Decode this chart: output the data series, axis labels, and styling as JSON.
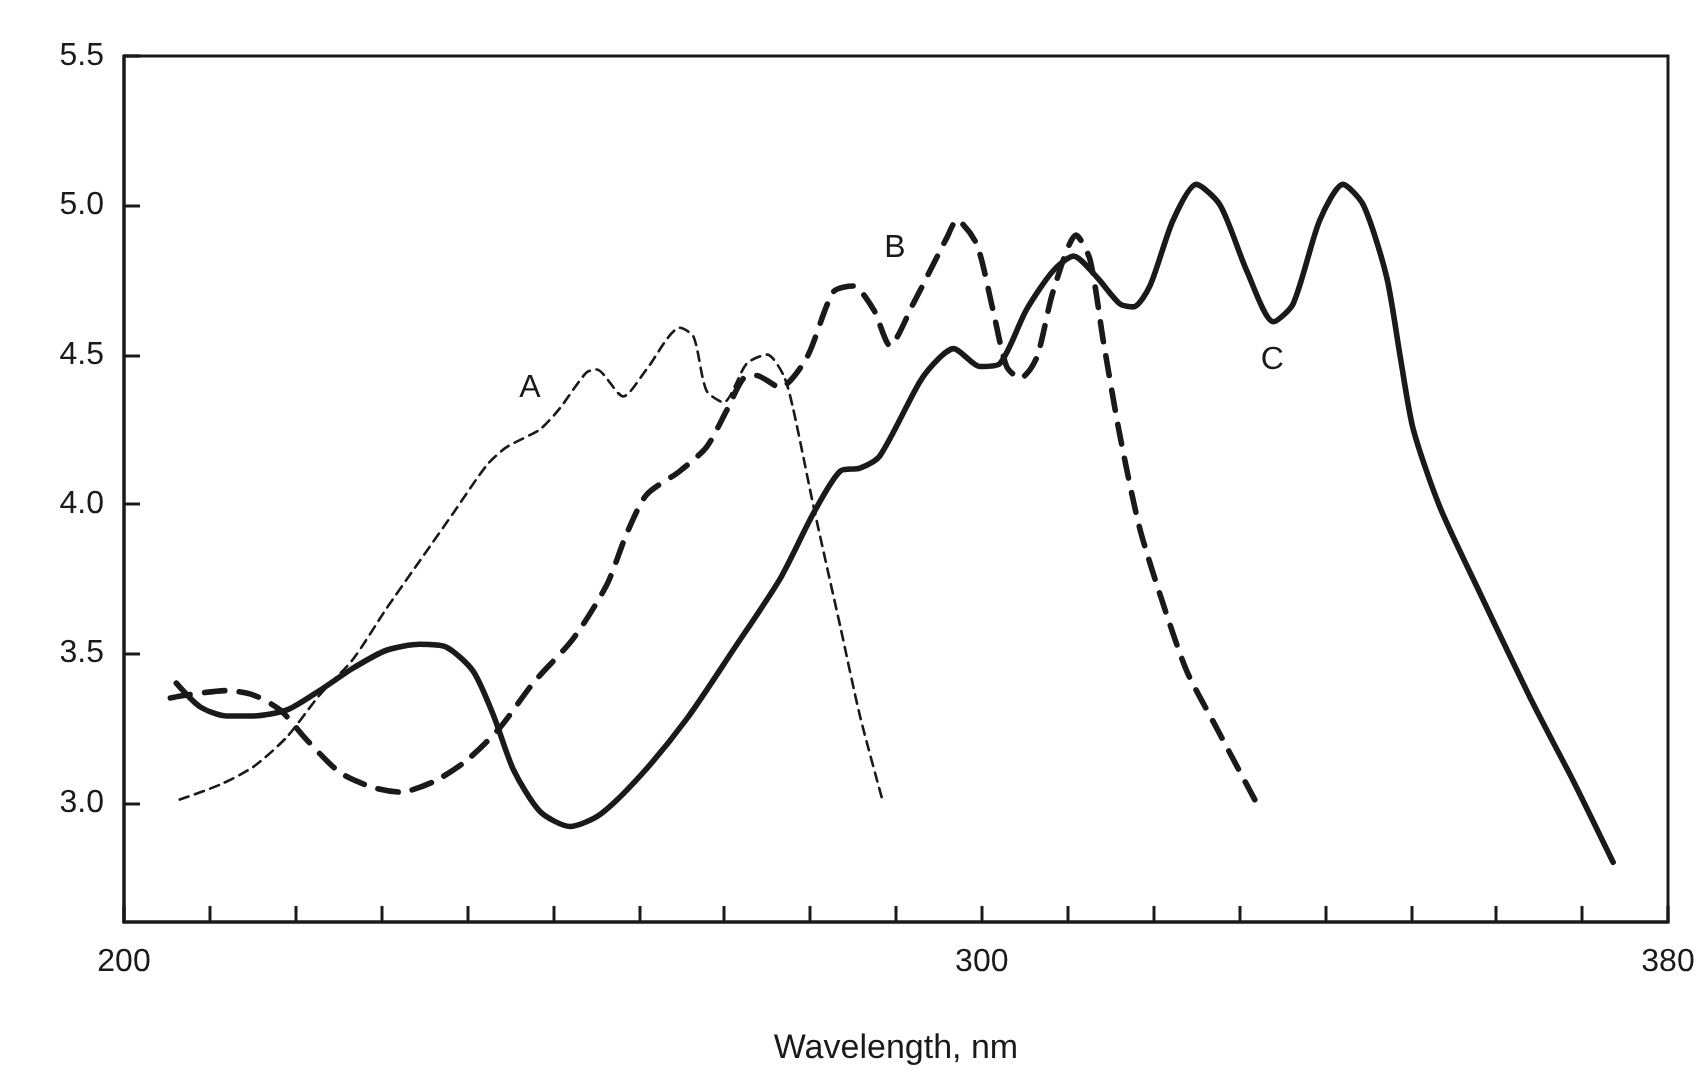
{
  "chart_data": {
    "type": "line",
    "xlabel": "Wavelength, nm",
    "xlim": [
      200,
      380
    ],
    "ylim": [
      2.6,
      5.5
    ],
    "xticks": [
      200,
      {
        "value": 210,
        "label": null
      },
      {
        "value": 220,
        "label": null
      },
      {
        "value": 230,
        "label": null
      },
      {
        "value": 240,
        "label": null
      },
      {
        "value": 250,
        "label": null
      },
      {
        "value": 260,
        "label": null
      },
      {
        "value": 270,
        "label": null
      },
      {
        "value": 280,
        "label": null
      },
      {
        "value": 290,
        "label": null
      },
      300,
      {
        "value": 310,
        "label": null
      },
      {
        "value": 320,
        "label": null
      },
      {
        "value": 330,
        "label": null
      },
      {
        "value": 340,
        "label": null
      },
      {
        "value": 350,
        "label": null
      },
      {
        "value": 360,
        "label": null
      },
      {
        "value": 370,
        "label": null
      },
      380
    ],
    "yticks": [
      {
        "value": 3,
        "label": "3.0"
      },
      3.5,
      {
        "value": 4,
        "label": "4.0"
      },
      4.5,
      {
        "value": 5,
        "label": "5.0"
      },
      5.5
    ],
    "series": [
      {
        "name": "A",
        "color": "#1a1a1a",
        "line_style": "dashed",
        "x": [
          206.5,
          211.2,
          215.1,
          219,
          222.8,
          226.7,
          230.6,
          234.5,
          238.4,
          242.3,
          244.6,
          248.5,
          250.8,
          253.9,
          255.1,
          258.2,
          260.9,
          264.8,
          266.4,
          267.9,
          269.9,
          272.6,
          275,
          276.9,
          278,
          280.4,
          283.5,
          285.8,
          288.5
        ],
        "values": [
          3.01,
          3.06,
          3.12,
          3.22,
          3.36,
          3.48,
          3.65,
          3.81,
          3.97,
          4.13,
          4.19,
          4.25,
          4.32,
          4.44,
          4.45,
          4.36,
          4.45,
          4.59,
          4.56,
          4.38,
          4.34,
          4.47,
          4.5,
          4.43,
          4.32,
          3.99,
          3.59,
          3.29,
          3.0
        ]
      },
      {
        "name": "B",
        "color": "#1a1a1a",
        "line_style": "dashed",
        "x": [
          205.4,
          207.3,
          212,
          215.1,
          218.2,
          221.3,
          225.2,
          229.1,
          232.2,
          236.1,
          239.9,
          243.8,
          247.7,
          252.4,
          256.3,
          258.6,
          260.9,
          264.8,
          267.9,
          270.2,
          272.2,
          273.7,
          276.5,
          279.6,
          282.7,
          285,
          287.4,
          289.3,
          292,
          295.9,
          297.1,
          299.4,
          301.3,
          302.9,
          304.5,
          306.4,
          308.3,
          311,
          312.6,
          314.2,
          316.1,
          318.4,
          321.2,
          323.9,
          327,
          332
        ],
        "values": [
          3.35,
          3.36,
          3.375,
          3.36,
          3.31,
          3.21,
          3.1,
          3.05,
          3.035,
          3.07,
          3.14,
          3.25,
          3.4,
          3.55,
          3.73,
          3.9,
          4.03,
          4.11,
          4.19,
          4.31,
          4.42,
          4.43,
          4.39,
          4.49,
          4.71,
          4.73,
          4.65,
          4.53,
          4.67,
          4.89,
          4.95,
          4.87,
          4.65,
          4.46,
          4.42,
          4.49,
          4.71,
          4.9,
          4.82,
          4.54,
          4.23,
          3.92,
          3.66,
          3.44,
          3.27,
          3.0
        ]
      },
      {
        "name": "C",
        "color": "#1a1a1a",
        "line_style": "solid",
        "x": [
          206.1,
          208.9,
          212,
          215.1,
          219,
          222.8,
          226.7,
          230.6,
          234.5,
          237.6,
          240.7,
          243.1,
          245.4,
          248.5,
          252,
          255.5,
          260.2,
          265.6,
          271,
          276.5,
          280.4,
          283.5,
          285.8,
          288.1,
          292.8,
          295.1,
          296.7,
          299.8,
          302.1,
          305.2,
          308.3,
          310.7,
          313.4,
          316.1,
          317.7,
          319.6,
          322.3,
          325,
          327.8,
          330.9,
          334,
          336.3,
          339.4,
          342.1,
          344.5,
          347.2,
          348.8,
          350.3,
          353.4,
          358.1,
          364.3,
          369,
          373.6
        ],
        "values": [
          3.4,
          3.32,
          3.29,
          3.29,
          3.31,
          3.375,
          3.45,
          3.51,
          3.53,
          3.52,
          3.44,
          3.29,
          3.11,
          2.97,
          2.92,
          2.96,
          3.09,
          3.28,
          3.51,
          3.75,
          3.97,
          4.11,
          4.12,
          4.16,
          4.41,
          4.49,
          4.52,
          4.46,
          4.47,
          4.65,
          4.78,
          4.83,
          4.76,
          4.67,
          4.66,
          4.73,
          4.95,
          5.07,
          5.0,
          4.78,
          4.61,
          4.67,
          4.95,
          5.07,
          5.0,
          4.76,
          4.49,
          4.25,
          3.99,
          3.7,
          3.33,
          3.07,
          2.8
        ]
      }
    ]
  }
}
